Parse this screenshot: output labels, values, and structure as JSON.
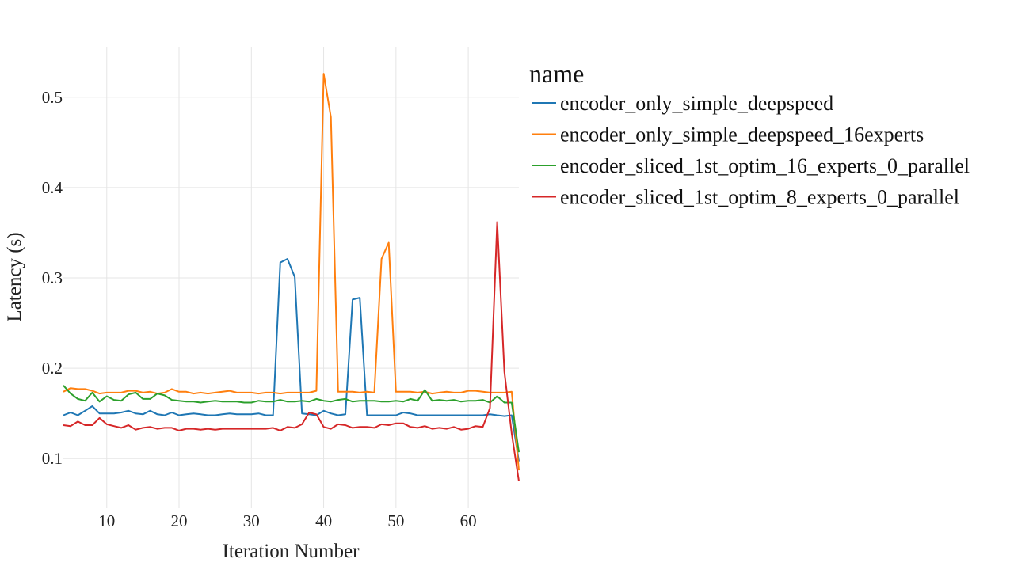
{
  "chart_data": {
    "type": "line",
    "xlabel": "Iteration Number",
    "ylabel": "Latency (s)",
    "xlim": [
      4,
      67
    ],
    "ylim": [
      0.045,
      0.555
    ],
    "xticks": [
      10,
      20,
      30,
      40,
      50,
      60
    ],
    "yticks": [
      0.1,
      0.2,
      0.3,
      0.4,
      0.5
    ],
    "grid": true,
    "legend": {
      "title": "name",
      "placement": "right"
    },
    "x": [
      4,
      5,
      6,
      7,
      8,
      9,
      10,
      11,
      12,
      13,
      14,
      15,
      16,
      17,
      18,
      19,
      20,
      21,
      22,
      23,
      24,
      25,
      26,
      27,
      28,
      29,
      30,
      31,
      32,
      33,
      34,
      35,
      36,
      37,
      38,
      39,
      40,
      41,
      42,
      43,
      44,
      45,
      46,
      47,
      48,
      49,
      50,
      51,
      52,
      53,
      54,
      55,
      56,
      57,
      58,
      59,
      60,
      61,
      62,
      63,
      64,
      65,
      66,
      67
    ],
    "series": [
      {
        "name": "encoder_only_simple_deepspeed",
        "color": "#1f77b4",
        "values": [
          0.148,
          0.151,
          0.148,
          0.153,
          0.158,
          0.15,
          0.15,
          0.15,
          0.151,
          0.153,
          0.15,
          0.149,
          0.153,
          0.149,
          0.148,
          0.151,
          0.148,
          0.149,
          0.15,
          0.149,
          0.148,
          0.148,
          0.149,
          0.15,
          0.149,
          0.149,
          0.149,
          0.15,
          0.148,
          0.148,
          0.317,
          0.321,
          0.301,
          0.15,
          0.149,
          0.148,
          0.153,
          0.15,
          0.148,
          0.149,
          0.276,
          0.278,
          0.148,
          0.148,
          0.148,
          0.148,
          0.148,
          0.151,
          0.15,
          0.148,
          0.148,
          0.148,
          0.148,
          0.148,
          0.148,
          0.148,
          0.148,
          0.148,
          0.148,
          0.149,
          0.148,
          0.147,
          0.148,
          0.097
        ]
      },
      {
        "name": "encoder_only_simple_deepspeed_16experts",
        "color": "#ff7f0e",
        "values": [
          0.174,
          0.178,
          0.177,
          0.177,
          0.175,
          0.172,
          0.173,
          0.173,
          0.173,
          0.175,
          0.175,
          0.173,
          0.174,
          0.172,
          0.173,
          0.177,
          0.174,
          0.174,
          0.172,
          0.173,
          0.172,
          0.173,
          0.174,
          0.175,
          0.173,
          0.173,
          0.173,
          0.172,
          0.173,
          0.173,
          0.172,
          0.173,
          0.173,
          0.173,
          0.173,
          0.175,
          0.526,
          0.478,
          0.174,
          0.174,
          0.174,
          0.173,
          0.174,
          0.173,
          0.321,
          0.339,
          0.174,
          0.174,
          0.174,
          0.173,
          0.174,
          0.172,
          0.173,
          0.174,
          0.173,
          0.173,
          0.175,
          0.175,
          0.174,
          0.173,
          0.173,
          0.173,
          0.174,
          0.087
        ]
      },
      {
        "name": "encoder_sliced_1st_optim_16_experts_0_parallel",
        "color": "#2ca02c",
        "values": [
          0.181,
          0.172,
          0.166,
          0.164,
          0.173,
          0.163,
          0.169,
          0.165,
          0.164,
          0.171,
          0.173,
          0.166,
          0.166,
          0.172,
          0.17,
          0.165,
          0.164,
          0.163,
          0.163,
          0.162,
          0.163,
          0.164,
          0.163,
          0.163,
          0.163,
          0.162,
          0.162,
          0.164,
          0.163,
          0.163,
          0.165,
          0.163,
          0.163,
          0.164,
          0.163,
          0.166,
          0.164,
          0.163,
          0.165,
          0.166,
          0.163,
          0.164,
          0.164,
          0.164,
          0.163,
          0.163,
          0.164,
          0.163,
          0.166,
          0.164,
          0.176,
          0.164,
          0.165,
          0.164,
          0.165,
          0.163,
          0.164,
          0.164,
          0.165,
          0.162,
          0.169,
          0.162,
          0.162,
          0.107
        ]
      },
      {
        "name": "encoder_sliced_1st_optim_8_experts_0_parallel",
        "color": "#d62728",
        "values": [
          0.137,
          0.136,
          0.141,
          0.137,
          0.137,
          0.145,
          0.138,
          0.136,
          0.134,
          0.137,
          0.132,
          0.134,
          0.135,
          0.133,
          0.134,
          0.134,
          0.131,
          0.133,
          0.133,
          0.132,
          0.133,
          0.132,
          0.133,
          0.133,
          0.133,
          0.133,
          0.133,
          0.133,
          0.133,
          0.134,
          0.131,
          0.135,
          0.134,
          0.138,
          0.151,
          0.149,
          0.135,
          0.133,
          0.138,
          0.137,
          0.134,
          0.135,
          0.135,
          0.134,
          0.138,
          0.137,
          0.139,
          0.139,
          0.135,
          0.134,
          0.136,
          0.133,
          0.134,
          0.133,
          0.135,
          0.132,
          0.133,
          0.136,
          0.135,
          0.156,
          0.362,
          0.196,
          0.128,
          0.075
        ]
      }
    ]
  }
}
